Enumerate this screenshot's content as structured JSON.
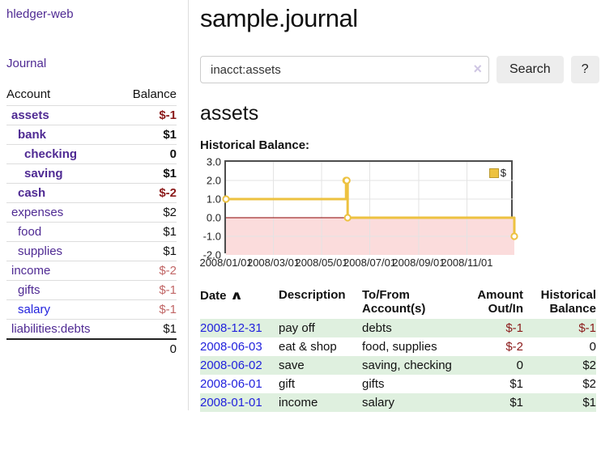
{
  "colors": {
    "accent_purple": "#4f2a93",
    "link_blue": "#2222dd",
    "negative_strong": "#8b1a1a",
    "negative_soft": "#c16666",
    "row_stripe_green": "#dff0df"
  },
  "sidebar": {
    "app_title": "hledger-web",
    "nav_journal": "Journal",
    "accounts_table": {
      "headers": {
        "account": "Account",
        "balance": "Balance"
      },
      "rows": [
        {
          "name": "assets",
          "depth": 1,
          "bold": true,
          "link": "purple",
          "balance": "$-1",
          "balance_style": "neg-strong"
        },
        {
          "name": "bank",
          "depth": 2,
          "bold": true,
          "link": "purple",
          "balance": "$1",
          "balance_style": "pos"
        },
        {
          "name": "checking",
          "depth": 3,
          "bold": true,
          "link": "purple",
          "balance": "0",
          "balance_style": "pos"
        },
        {
          "name": "saving",
          "depth": 3,
          "bold": true,
          "link": "purple",
          "balance": "$1",
          "balance_style": "pos"
        },
        {
          "name": "cash",
          "depth": 2,
          "bold": true,
          "link": "purple",
          "balance": "$-2",
          "balance_style": "neg-strong"
        },
        {
          "name": "expenses",
          "depth": 1,
          "bold": false,
          "link": "purple",
          "balance": "$2",
          "balance_style": "pos"
        },
        {
          "name": "food",
          "depth": 2,
          "bold": false,
          "link": "purple",
          "balance": "$1",
          "balance_style": "pos"
        },
        {
          "name": "supplies",
          "depth": 2,
          "bold": false,
          "link": "purple",
          "balance": "$1",
          "balance_style": "pos"
        },
        {
          "name": "income",
          "depth": 1,
          "bold": false,
          "link": "purple",
          "balance": "$-2",
          "balance_style": "neg-soft"
        },
        {
          "name": "gifts",
          "depth": 2,
          "bold": false,
          "link": "purple",
          "balance": "$-1",
          "balance_style": "neg-soft"
        },
        {
          "name": "salary",
          "depth": 2,
          "bold": false,
          "link": "blue",
          "balance": "$-1",
          "balance_style": "neg-soft"
        },
        {
          "name": "liabilities:debts",
          "depth": 1,
          "bold": false,
          "link": "purple",
          "balance": "$1",
          "balance_style": "pos"
        }
      ],
      "total": "0"
    }
  },
  "header": {
    "title": "sample.journal"
  },
  "search": {
    "value": "inacct:assets",
    "clear_icon": "×",
    "search_button": "Search",
    "help_button": "?"
  },
  "main": {
    "account_heading": "assets",
    "chart_title": "Historical Balance:"
  },
  "chart_data": {
    "type": "line",
    "step": true,
    "title": "Historical Balance:",
    "xlim": [
      "2008-01-01",
      "2008-12-31"
    ],
    "ylim": [
      -2,
      3
    ],
    "y_ticks": [
      3.0,
      2.0,
      1.0,
      0.0,
      -1.0,
      -2.0
    ],
    "x_ticks": [
      "2008/01/01",
      "2008/03/01",
      "2008/05/01",
      "2008/07/01",
      "2008/09/01",
      "2008/11/01"
    ],
    "grid": true,
    "legend": {
      "label": "$",
      "position": "top-right"
    },
    "series": [
      {
        "name": "$",
        "color": "#edc240",
        "points": [
          [
            "2008-01-01",
            1
          ],
          [
            "2008-06-01",
            2
          ],
          [
            "2008-06-02",
            2
          ],
          [
            "2008-06-03",
            0
          ],
          [
            "2008-12-31",
            -1
          ]
        ]
      }
    ],
    "style": {
      "negative_region": "#fbdcdc",
      "zero_line": "#8b0000",
      "grid_line": "#e3e3e3",
      "border": "#4d4d4d",
      "marker_fill": "#ffffff"
    }
  },
  "register": {
    "headers": [
      "Date",
      "Description",
      "To/From Account(s)",
      "Amount Out/In",
      "Historical Balance"
    ],
    "sort_icon": "∧",
    "rows": [
      {
        "date": "2008-12-31",
        "description": "pay off",
        "accounts": "debts",
        "amount": "$-1",
        "amount_neg": true,
        "balance": "$-1",
        "balance_neg": true
      },
      {
        "date": "2008-06-03",
        "description": "eat & shop",
        "accounts": "food, supplies",
        "amount": "$-2",
        "amount_neg": true,
        "balance": "0",
        "balance_neg": false
      },
      {
        "date": "2008-06-02",
        "description": "save",
        "accounts": "saving, checking",
        "amount": "0",
        "amount_neg": false,
        "balance": "$2",
        "balance_neg": false
      },
      {
        "date": "2008-06-01",
        "description": "gift",
        "accounts": "gifts",
        "amount": "$1",
        "amount_neg": false,
        "balance": "$2",
        "balance_neg": false
      },
      {
        "date": "2008-01-01",
        "description": "income",
        "accounts": "salary",
        "amount": "$1",
        "amount_neg": false,
        "balance": "$1",
        "balance_neg": false
      }
    ]
  }
}
